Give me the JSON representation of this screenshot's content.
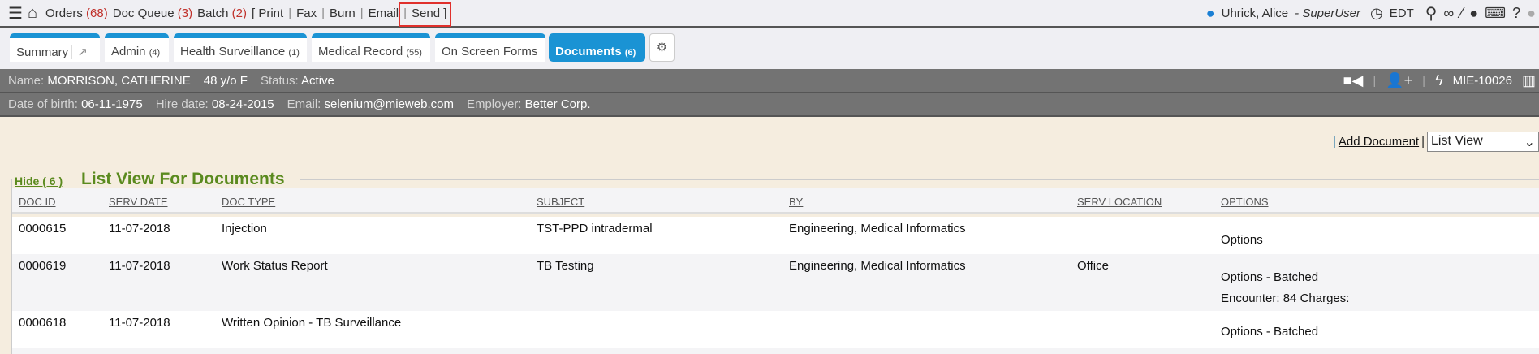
{
  "topbar": {
    "orders_label": "Orders",
    "orders_count": "(68)",
    "docqueue_label": "Doc Queue",
    "docqueue_count": "(3)",
    "batch_label": "Batch",
    "batch_count": "(2)",
    "batch_actions": [
      "[ Print",
      "Fax",
      "Burn",
      "Email",
      "Send ]"
    ],
    "user_name": "Uhrick, Alice",
    "user_role": "- SuperUser",
    "timezone": "EDT"
  },
  "tabs": [
    {
      "label": "Summary"
    },
    {
      "label": "Admin",
      "count": "(4)"
    },
    {
      "label": "Health Surveillance",
      "count": "(1)"
    },
    {
      "label": "Medical Record",
      "count": "(55)"
    },
    {
      "label": "On Screen Forms"
    },
    {
      "label": "Documents",
      "count": "(6)"
    }
  ],
  "patient": {
    "name_label": "Name:",
    "name": "MORRISON, CATHERINE",
    "age": "48 y/o F",
    "status_label": "Status:",
    "status": "Active",
    "id": "MIE-10026",
    "dob_label": "Date of birth:",
    "dob": "06-11-1975",
    "hire_label": "Hire date:",
    "hire": "08-24-2015",
    "email_label": "Email:",
    "email": "selenium@mieweb.com",
    "employer_label": "Employer:",
    "employer": "Better Corp."
  },
  "actions": {
    "sep1": "|",
    "add_document": "Add Document",
    "sep2": "|",
    "view_select": "List View"
  },
  "list": {
    "hide_label": "Hide ( 6 )",
    "title": "List View For Documents",
    "columns": [
      "DOC ID",
      "SERV DATE",
      "DOC TYPE",
      "SUBJECT",
      "BY",
      "SERV LOCATION",
      "OPTIONS"
    ],
    "rows": [
      {
        "id": "0000615",
        "date": "11-07-2018",
        "type": "Injection",
        "subject": "TST-PPD intradermal",
        "by": "Engineering, Medical Informatics",
        "location": "",
        "options": "Options",
        "extra": ""
      },
      {
        "id": "0000619",
        "date": "11-07-2018",
        "type": "Work Status Report",
        "subject": "TB Testing",
        "by": "Engineering, Medical Informatics",
        "location": "Office",
        "options": "Options - Batched",
        "extra": "Encounter: 84 Charges:"
      },
      {
        "id": "0000618",
        "date": "11-07-2018",
        "type": "Written Opinion - TB Surveillance",
        "subject": "",
        "by": "",
        "location": "",
        "options": "Options - Batched",
        "extra": ""
      }
    ]
  },
  "colors": {
    "accent": "#1a93d4",
    "title_green": "#5a8a1e",
    "count_red": "#c0312b",
    "highlight": "#e0302c"
  }
}
